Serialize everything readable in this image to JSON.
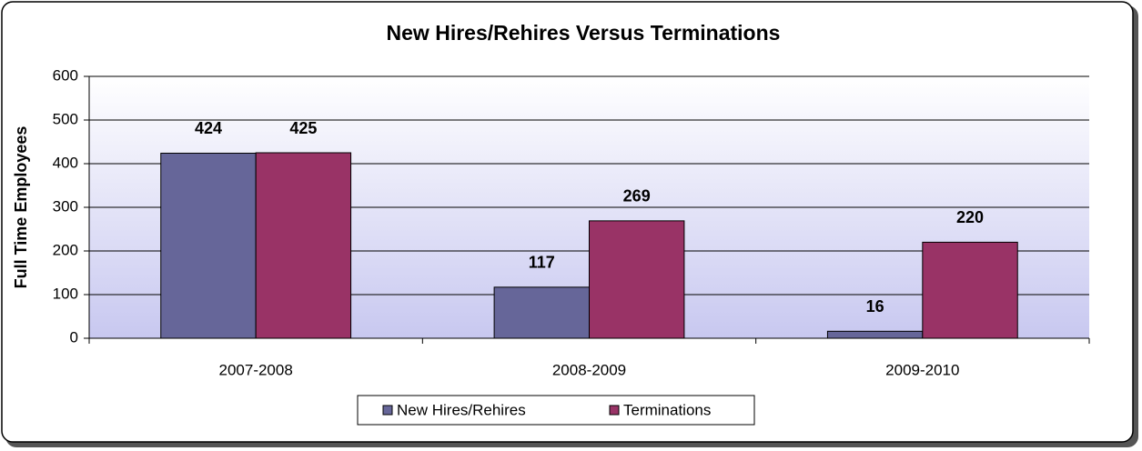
{
  "chart_data": {
    "type": "bar",
    "title": "New Hires/Rehires Versus Terminations",
    "ylabel": "Full Time Employees",
    "categories": [
      "2007-2008",
      "2008-2009",
      "2009-2010"
    ],
    "series": [
      {
        "name": "New Hires/Rehires",
        "color": "#666699",
        "values": [
          424,
          117,
          16
        ]
      },
      {
        "name": "Terminations",
        "color": "#993366",
        "values": [
          425,
          269,
          220
        ]
      }
    ],
    "ylim": [
      0,
      600
    ],
    "yticks": [
      0,
      100,
      200,
      300,
      400,
      500,
      600
    ],
    "grid": true,
    "legend": "bottom"
  }
}
